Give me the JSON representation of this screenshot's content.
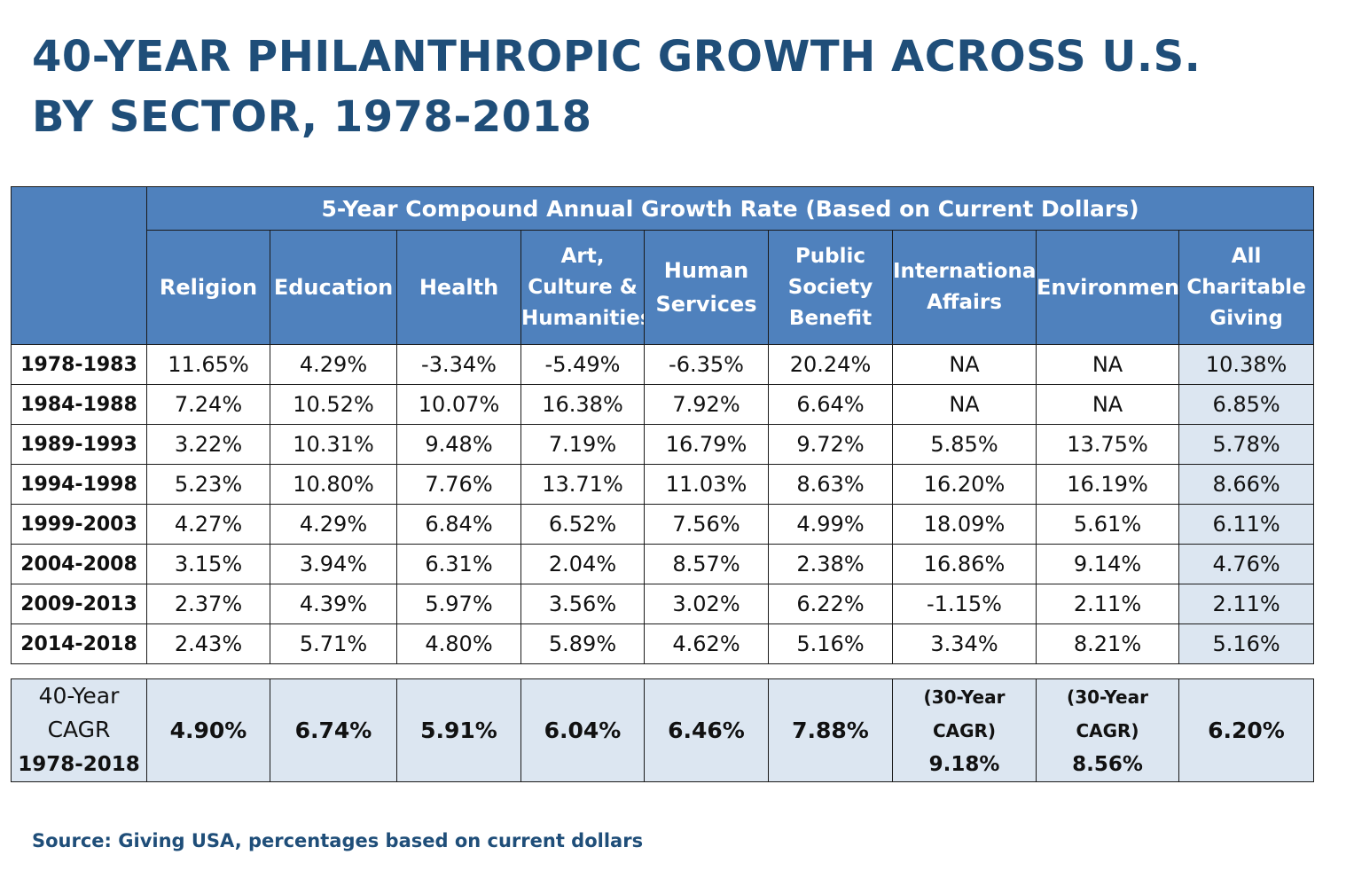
{
  "title": {
    "line1": "40-YEAR PHILANTHROPIC GROWTH ACROSS U.S.",
    "line2": "BY SECTOR, 1978-2018"
  },
  "source": "Source: Giving USA, percentages based on current dollars",
  "chart_data": {
    "type": "table",
    "spanning_header": "5-Year Compound Annual Growth Rate (Based on Current Dollars)",
    "columns": [
      [
        "Religion"
      ],
      [
        "Education"
      ],
      [
        "Health"
      ],
      [
        "Art,",
        "Culture &",
        "Humanities"
      ],
      [
        "Human",
        "Services"
      ],
      [
        "Public",
        "Society",
        "Benefit"
      ],
      [
        "International",
        "Affairs"
      ],
      [
        "Environment"
      ],
      [
        "All",
        "Charitable",
        "Giving"
      ]
    ],
    "rows": [
      {
        "period": "1978-1983",
        "values": [
          "11.65%",
          "4.29%",
          "-3.34%",
          "-5.49%",
          "-6.35%",
          "20.24%",
          "NA",
          "NA",
          "10.38%"
        ]
      },
      {
        "period": "1984-1988",
        "values": [
          "7.24%",
          "10.52%",
          "10.07%",
          "16.38%",
          "7.92%",
          "6.64%",
          "NA",
          "NA",
          "6.85%"
        ]
      },
      {
        "period": "1989-1993",
        "values": [
          "3.22%",
          "10.31%",
          "9.48%",
          "7.19%",
          "16.79%",
          "9.72%",
          "5.85%",
          "13.75%",
          "5.78%"
        ]
      },
      {
        "period": "1994-1998",
        "values": [
          "5.23%",
          "10.80%",
          "7.76%",
          "13.71%",
          "11.03%",
          "8.63%",
          "16.20%",
          "16.19%",
          "8.66%"
        ]
      },
      {
        "period": "1999-2003",
        "values": [
          "4.27%",
          "4.29%",
          "6.84%",
          "6.52%",
          "7.56%",
          "4.99%",
          "18.09%",
          "5.61%",
          "6.11%"
        ]
      },
      {
        "period": "2004-2008",
        "values": [
          "3.15%",
          "3.94%",
          "6.31%",
          "2.04%",
          "8.57%",
          "2.38%",
          "16.86%",
          "9.14%",
          "4.76%"
        ]
      },
      {
        "period": "2009-2013",
        "values": [
          "2.37%",
          "4.39%",
          "5.97%",
          "3.56%",
          "3.02%",
          "6.22%",
          "-1.15%",
          "2.11%",
          "2.11%"
        ]
      },
      {
        "period": "2014-2018",
        "values": [
          "2.43%",
          "5.71%",
          "4.80%",
          "5.89%",
          "4.62%",
          "5.16%",
          "3.34%",
          "8.21%",
          "5.16%"
        ]
      }
    ],
    "summary": {
      "label": [
        "40-Year",
        "CAGR",
        "1978-2018"
      ],
      "values": [
        "4.90%",
        "6.74%",
        "5.91%",
        "6.04%",
        "6.46%",
        "7.88%"
      ],
      "international": {
        "note": [
          "(30-Year",
          "CAGR)"
        ],
        "value": "9.18%"
      },
      "environment": {
        "note": [
          "(30-Year",
          "CAGR)"
        ],
        "value": "8.56%"
      },
      "all": "6.20%"
    }
  },
  "colors": {
    "header_bg": "#4F81BD",
    "header_text": "#FFFFFF",
    "highlight_bg": "#DCE6F1",
    "title": "#1F4E79"
  }
}
